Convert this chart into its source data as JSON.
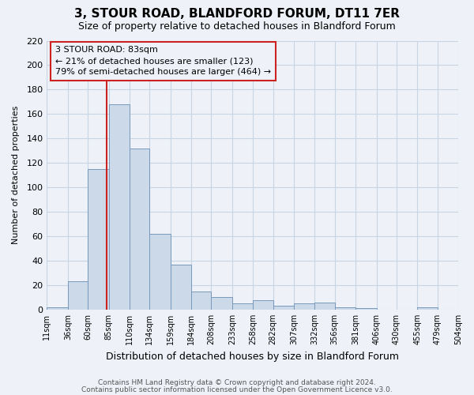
{
  "title": "3, STOUR ROAD, BLANDFORD FORUM, DT11 7ER",
  "subtitle": "Size of property relative to detached houses in Blandford Forum",
  "xlabel": "Distribution of detached houses by size in Blandford Forum",
  "ylabel": "Number of detached properties",
  "footnote1": "Contains HM Land Registry data © Crown copyright and database right 2024.",
  "footnote2": "Contains public sector information licensed under the Open Government Licence v3.0.",
  "bin_edges": [
    11,
    36,
    60,
    85,
    110,
    134,
    159,
    184,
    208,
    233,
    258,
    282,
    307,
    332,
    356,
    381,
    406,
    430,
    455,
    479,
    504
  ],
  "bar_heights": [
    2,
    23,
    115,
    168,
    132,
    62,
    37,
    15,
    10,
    5,
    8,
    3,
    5,
    6,
    2,
    1,
    0,
    0,
    2,
    0
  ],
  "bar_color": "#ccd9e8",
  "bar_edgecolor": "#7799bb",
  "x_tick_labels": [
    "11sqm",
    "36sqm",
    "60sqm",
    "85sqm",
    "110sqm",
    "134sqm",
    "159sqm",
    "184sqm",
    "208sqm",
    "233sqm",
    "258sqm",
    "282sqm",
    "307sqm",
    "332sqm",
    "356sqm",
    "381sqm",
    "406sqm",
    "430sqm",
    "455sqm",
    "479sqm",
    "504sqm"
  ],
  "ylim": [
    0,
    220
  ],
  "yticks": [
    0,
    20,
    40,
    60,
    80,
    100,
    120,
    140,
    160,
    180,
    200,
    220
  ],
  "property_line_x": 83,
  "annotation_title": "3 STOUR ROAD: 83sqm",
  "annotation_line1": "← 21% of detached houses are smaller (123)",
  "annotation_line2": "79% of semi-detached houses are larger (464) →",
  "grid_color": "#c8d4e4",
  "background_color": "#eef2f8",
  "title_fontsize": 11,
  "subtitle_fontsize": 9
}
